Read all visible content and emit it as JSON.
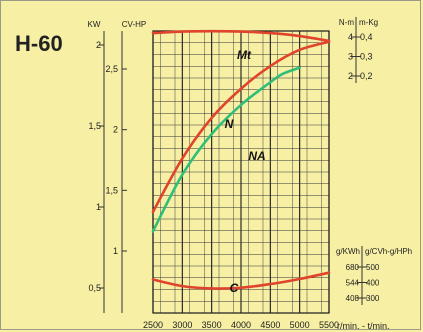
{
  "chart_data": {
    "type": "line",
    "title": "H-60",
    "x": [
      2500,
      3000,
      3500,
      4000,
      4500,
      5000,
      5500
    ],
    "xlim": [
      2500,
      5500
    ],
    "x_tick_labels": [
      "2500",
      "3000",
      "3500",
      "4000",
      "4500",
      "5000",
      "5500"
    ],
    "x_unit_label": "r/min. - t/min.",
    "left_axes": {
      "kw": {
        "label": "KW",
        "ticks": [
          "2",
          "1,5",
          "1",
          "0,5"
        ],
        "tick_values": [
          2,
          1.5,
          1,
          0.5
        ]
      },
      "cv": {
        "label": "CV-HP",
        "ticks": [
          "2,5",
          "2",
          "1,5",
          "1"
        ],
        "tick_values": [
          2.5,
          2,
          1.5,
          1
        ]
      }
    },
    "right_axes_top": {
      "nm": {
        "label": "N-m",
        "ticks": [
          "4",
          "3",
          "2"
        ],
        "tick_values": [
          4,
          3,
          2
        ]
      },
      "mkg": {
        "label": "m-Kg",
        "ticks": [
          "0,4",
          "0,3",
          "0,2"
        ],
        "tick_values": [
          0.4,
          0.3,
          0.2
        ]
      }
    },
    "right_axes_bottom": {
      "gkwh": {
        "label": "g/KWh",
        "ticks": [
          "680",
          "544",
          "408"
        ],
        "tick_values": [
          680,
          544,
          408
        ]
      },
      "gcvh": {
        "label": "g/CVh-g/HPh",
        "ticks": [
          "500",
          "400",
          "300"
        ],
        "tick_values": [
          500,
          400,
          300
        ]
      }
    },
    "series": [
      {
        "name": "Mt",
        "unit": "N-m",
        "color": "#e0442c",
        "values": [
          4.2,
          4.28,
          4.3,
          4.28,
          4.2,
          4.05,
          3.8
        ]
      },
      {
        "name": "N",
        "unit": "KW",
        "color": "#e0442c",
        "values": [
          0.97,
          1.3,
          1.55,
          1.73,
          1.87,
          1.97,
          2.02
        ]
      },
      {
        "name": "NA",
        "unit": "KW",
        "color": "#2fbf7a",
        "x": [
          2500,
          3000,
          3500,
          4000,
          4500,
          4700,
          5000
        ],
        "values": [
          0.85,
          1.2,
          1.45,
          1.63,
          1.77,
          1.82,
          1.86
        ]
      },
      {
        "name": "C",
        "unit": "g/KWh",
        "color": "#e0442c",
        "values": [
          570,
          512,
          492,
          498,
          530,
          575,
          630
        ]
      }
    ]
  }
}
